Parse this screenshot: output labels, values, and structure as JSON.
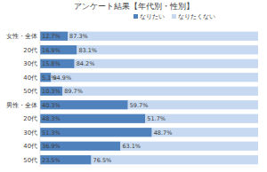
{
  "chart_data": {
    "type": "bar",
    "title": "アンケート結果【年代別・性別】",
    "orientation": "horizontal",
    "stacked": true,
    "data_labels": true,
    "legend": "top",
    "grid": false,
    "tick_labels": "x",
    "ylim": [
      0,
      100
    ],
    "categories": [
      "女性・全体",
      "20代",
      "30代",
      "40代",
      "50代",
      "男性・全体",
      "20代",
      "30代",
      "40代",
      "50代"
    ],
    "series": [
      {
        "name": "なりたい",
        "color": "#4f81bd",
        "values": [
          12.7,
          16.9,
          15.8,
          5.1,
          10.3,
          40.3,
          48.3,
          51.3,
          36.9,
          23.5
        ],
        "value_labels": [
          "12.7%",
          "16.9%",
          "15.8%",
          "5.1%",
          "10.3%",
          "40.3%",
          "48.3%",
          "51.3%",
          "36.9%",
          "23.5%"
        ]
      },
      {
        "name": "なりたくない",
        "color": "#c6d9f0",
        "values": [
          87.3,
          83.1,
          84.2,
          94.9,
          89.7,
          59.7,
          51.7,
          48.7,
          63.1,
          76.5
        ],
        "value_labels": [
          "87.3%",
          "83.1%",
          "84.2%",
          "94.9%",
          "89.7%",
          "59.7%",
          "51.7%",
          "48.7%",
          "63.1%",
          "76.5%"
        ]
      }
    ]
  }
}
